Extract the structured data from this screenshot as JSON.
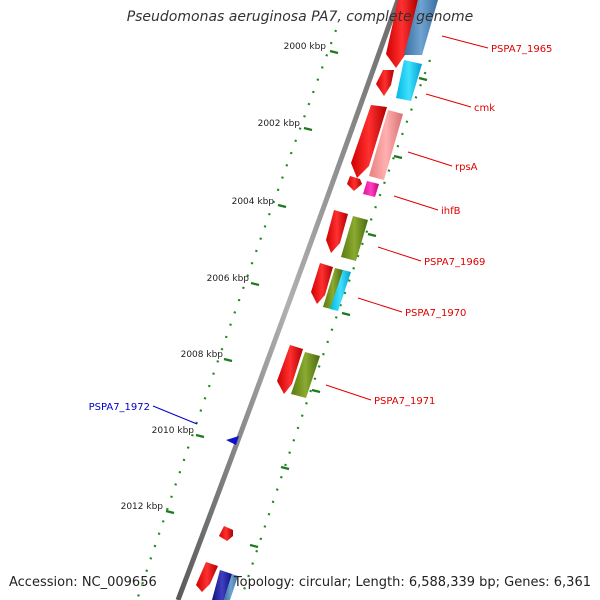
{
  "title": "Pseudomonas aeruginosa PA7, complete genome",
  "footer": {
    "accession": "Accession: NC_009656",
    "topology": "Topology: circular; Length: 6,588,339 bp; Genes: 6,361"
  },
  "colors": {
    "backbone": "#8a8a8a",
    "tick": "#1e7a1e",
    "gene_forward": "#ff1a1a",
    "label_red": "#e00000",
    "label_blue": "#0000cc"
  },
  "scale_labels": [
    "2000 kbp",
    "2002 kbp",
    "2004 kbp",
    "2006 kbp",
    "2008 kbp",
    "2010 kbp",
    "2012 kbp"
  ],
  "gene_labels": [
    {
      "name": "PSPA7_1965",
      "color": "red"
    },
    {
      "name": "cmk",
      "color": "red"
    },
    {
      "name": "rpsA",
      "color": "red"
    },
    {
      "name": "ihfB",
      "color": "red"
    },
    {
      "name": "PSPA7_1969",
      "color": "red"
    },
    {
      "name": "PSPA7_1970",
      "color": "red"
    },
    {
      "name": "PSPA7_1971",
      "color": "red"
    },
    {
      "name": "PSPA7_1972",
      "color": "blue"
    }
  ]
}
